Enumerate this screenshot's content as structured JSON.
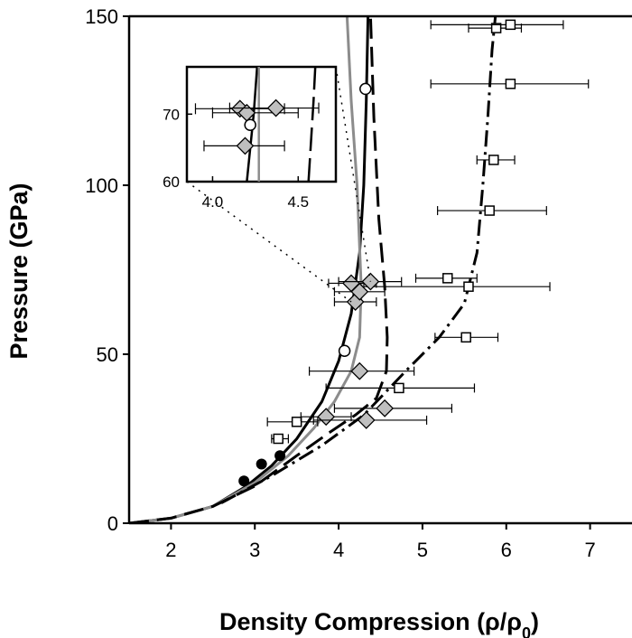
{
  "chart_data": {
    "type": "scatter",
    "title": "",
    "xlabel": "Density Compression (ρ/ρ",
    "xlabel_sub": "0",
    "xlabel_close": ")",
    "ylabel": "Pressure (GPa)",
    "xlim": [
      1.5,
      7.5
    ],
    "ylim": [
      0,
      150
    ],
    "x_ticks": [
      2,
      3,
      4,
      5,
      6,
      7
    ],
    "y_ticks": [
      0,
      50,
      100,
      150
    ],
    "grid": false,
    "colors": {
      "axis": "#000000",
      "gray_curve": "#8c8c8c",
      "diamond_fill": "#bfbfbf",
      "black": "#000000"
    },
    "curves": [
      {
        "style": "solid-black",
        "points": [
          [
            1.5,
            0
          ],
          [
            2.0,
            1.5
          ],
          [
            2.5,
            5
          ],
          [
            2.9,
            11
          ],
          [
            3.2,
            17
          ],
          [
            3.5,
            25
          ],
          [
            3.8,
            36
          ],
          [
            4.0,
            48
          ],
          [
            4.15,
            62
          ],
          [
            4.25,
            80
          ],
          [
            4.3,
            100
          ],
          [
            4.33,
            125
          ],
          [
            4.35,
            150
          ]
        ]
      },
      {
        "style": "solid-gray",
        "points": [
          [
            1.5,
            0
          ],
          [
            2.0,
            1.5
          ],
          [
            2.5,
            5
          ],
          [
            3.0,
            12
          ],
          [
            3.4,
            20
          ],
          [
            3.7,
            28
          ],
          [
            3.95,
            36
          ],
          [
            4.15,
            45
          ],
          [
            4.25,
            55
          ],
          [
            4.27,
            70
          ],
          [
            4.22,
            100
          ],
          [
            4.15,
            125
          ],
          [
            4.1,
            150
          ]
        ]
      },
      {
        "style": "long-dash-black",
        "points": [
          [
            1.5,
            0
          ],
          [
            2.0,
            1.5
          ],
          [
            2.5,
            5
          ],
          [
            3.0,
            11
          ],
          [
            3.5,
            20
          ],
          [
            3.9,
            27
          ],
          [
            4.2,
            32
          ],
          [
            4.45,
            37
          ],
          [
            4.57,
            45
          ],
          [
            4.58,
            55
          ],
          [
            4.55,
            70
          ],
          [
            4.48,
            90
          ],
          [
            4.42,
            120
          ],
          [
            4.38,
            150
          ]
        ]
      },
      {
        "style": "dash-dot-black",
        "points": [
          [
            2.6,
            6
          ],
          [
            3.2,
            14
          ],
          [
            3.8,
            23
          ],
          [
            4.3,
            32
          ],
          [
            4.8,
            45
          ],
          [
            5.2,
            55
          ],
          [
            5.5,
            65
          ],
          [
            5.65,
            80
          ],
          [
            5.72,
            100
          ],
          [
            5.78,
            120
          ],
          [
            5.83,
            140
          ],
          [
            5.87,
            150
          ]
        ]
      }
    ],
    "series": [
      {
        "marker": "filled-circle",
        "points": [
          [
            2.87,
            12.5
          ],
          [
            3.08,
            17.5
          ],
          [
            3.3,
            20
          ]
        ]
      },
      {
        "marker": "open-circle",
        "points": [
          [
            4.07,
            51
          ],
          [
            4.32,
            128.5
          ]
        ]
      },
      {
        "marker": "open-square",
        "points": [
          {
            "x": 3.28,
            "y": 25,
            "xerr": [
              3.2,
              3.4
            ]
          },
          {
            "x": 3.5,
            "y": 30,
            "xerr": [
              3.15,
              3.75
            ]
          },
          {
            "x": 4.72,
            "y": 40,
            "xerr": [
              3.85,
              5.62
            ]
          },
          {
            "x": 5.52,
            "y": 55,
            "xerr": [
              5.15,
              5.9
            ]
          },
          {
            "x": 5.55,
            "y": 70,
            "xerr": [
              4.3,
              6.52
            ]
          },
          {
            "x": 5.3,
            "y": 72.5,
            "xerr": [
              4.92,
              5.65
            ]
          },
          {
            "x": 5.8,
            "y": 92.5,
            "xerr": [
              5.18,
              6.48
            ]
          },
          {
            "x": 5.85,
            "y": 107.5,
            "xerr": [
              5.65,
              6.1
            ]
          },
          {
            "x": 6.05,
            "y": 130,
            "xerr": [
              5.1,
              6.98
            ]
          },
          {
            "x": 5.88,
            "y": 146.5,
            "xerr": [
              5.55,
              6.18
            ]
          },
          {
            "x": 6.05,
            "y": 147.5,
            "xerr": [
              5.1,
              6.68
            ]
          }
        ]
      },
      {
        "marker": "gray-diamond",
        "points": [
          {
            "x": 3.85,
            "y": 31.5,
            "xerr": [
              3.55,
              4.15
            ]
          },
          {
            "x": 4.33,
            "y": 30.5,
            "xerr": [
              3.7,
              5.05
            ]
          },
          {
            "x": 4.55,
            "y": 34,
            "xerr": [
              3.95,
              5.35
            ]
          },
          {
            "x": 4.25,
            "y": 45,
            "xerr": [
              3.65,
              4.9
            ]
          },
          {
            "x": 4.2,
            "y": 65.5,
            "xerr": [
              3.95,
              4.45
            ]
          },
          {
            "x": 4.25,
            "y": 68.5,
            "xerr": [
              3.95,
              4.55
            ]
          },
          {
            "x": 4.15,
            "y": 71,
            "xerr": [
              3.88,
              4.45
            ]
          },
          {
            "x": 4.38,
            "y": 71.5,
            "xerr": [
              4.0,
              4.75
            ]
          }
        ]
      }
    ],
    "inset": {
      "xlim": [
        3.85,
        4.72
      ],
      "ylim": [
        60,
        77
      ],
      "x_ticks": [
        4.0,
        4.5
      ],
      "x_tick_labels": [
        "4.0",
        "4.5"
      ],
      "y_ticks": [
        60,
        70
      ],
      "diamonds": [
        {
          "x": 4.16,
          "y": 70.8,
          "xerr": [
            3.9,
            4.42
          ]
        },
        {
          "x": 4.2,
          "y": 70.2,
          "xerr": [
            4.0,
            4.5
          ]
        },
        {
          "x": 4.37,
          "y": 70.9,
          "xerr": [
            4.1,
            4.62
          ]
        },
        {
          "x": 4.19,
          "y": 65.3,
          "xerr": [
            3.95,
            4.42
          ]
        }
      ],
      "circles": [
        {
          "x": 4.22,
          "y": 68.4
        }
      ],
      "curves": [
        {
          "style": "solid-black",
          "points": [
            [
              4.2,
              60
            ],
            [
              4.22,
              65
            ],
            [
              4.24,
              70
            ],
            [
              4.26,
              77
            ]
          ]
        },
        {
          "style": "solid-gray",
          "points": [
            [
              4.27,
              60
            ],
            [
              4.27,
              77
            ]
          ]
        },
        {
          "style": "long-dash-black",
          "points": [
            [
              4.56,
              60
            ],
            [
              4.575,
              66
            ],
            [
              4.59,
              72
            ],
            [
              4.6,
              77
            ]
          ]
        }
      ]
    }
  }
}
